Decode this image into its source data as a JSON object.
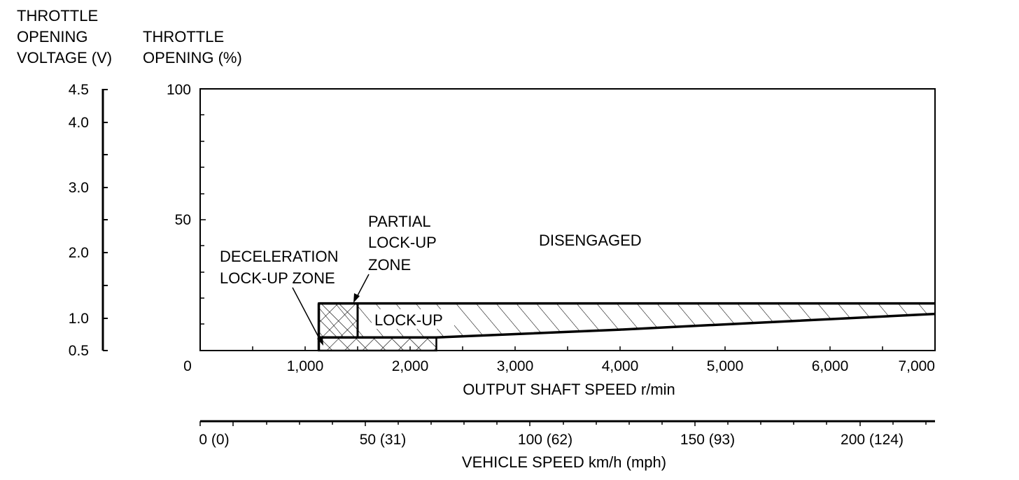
{
  "chart_data": {
    "type": "area",
    "title": "",
    "left_axis": {
      "title_lines": [
        "THROTTLE",
        "OPENING",
        "VOLTAGE (V)"
      ],
      "tick_labels": [
        "4.5",
        "4.0",
        "3.0",
        "2.0",
        "1.0",
        "0.5"
      ],
      "tick_values": [
        4.5,
        4.0,
        3.0,
        2.0,
        1.0,
        0.5
      ]
    },
    "y_axis": {
      "title_lines": [
        "THROTTLE",
        "OPENING (%)"
      ],
      "tick_labels": [
        "100",
        "50",
        "0"
      ],
      "tick_values": [
        100,
        50,
        0
      ],
      "ylim": [
        0,
        100
      ]
    },
    "x_axis": {
      "label": "OUTPUT SHAFT SPEED r/min",
      "tick_labels": [
        "1,000",
        "2,000",
        "3,000",
        "4,000",
        "5,000",
        "6,000",
        "7,000"
      ],
      "tick_values": [
        1000,
        2000,
        3000,
        4000,
        5000,
        6000,
        7000
      ],
      "xlim": [
        0,
        7000
      ]
    },
    "secondary_x_axis": {
      "label": "VEHICLE SPEED km/h (mph)",
      "tick_labels": [
        "0 (0)",
        "50 (31)",
        "100 (62)",
        "150 (93)",
        "200 (124)"
      ],
      "tick_values": [
        0,
        50,
        100,
        150,
        200
      ]
    },
    "zones": [
      {
        "name": "DISENGAGED",
        "label_lines": [
          "DISENGAGED"
        ]
      },
      {
        "name": "LOCK-UP",
        "label_lines": [
          "LOCK-UP"
        ],
        "pattern": "hatch",
        "upper": [
          [
            1130,
            18
          ],
          [
            7000,
            18
          ]
        ],
        "lower": [
          [
            1130,
            5
          ],
          [
            2250,
            5
          ],
          [
            4000,
            8
          ],
          [
            7000,
            14
          ]
        ]
      },
      {
        "name": "PARTIAL LOCK-UP ZONE",
        "label_lines": [
          "PARTIAL",
          "LOCK-UP",
          "ZONE"
        ],
        "pattern": "crosshatch",
        "x_range": [
          1130,
          1500
        ],
        "y_range": [
          5,
          18
        ]
      },
      {
        "name": "DECELERATION LOCK-UP ZONE",
        "label_lines": [
          "DECELERATION",
          "LOCK-UP ZONE"
        ],
        "pattern": "crosshatch",
        "x_range": [
          1130,
          2250
        ],
        "y_range": [
          0,
          5
        ]
      }
    ]
  }
}
